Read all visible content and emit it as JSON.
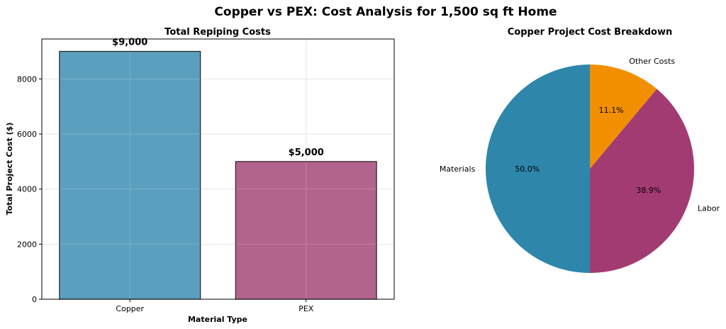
{
  "figure": {
    "title": "Copper vs PEX: Cost Analysis for 1,500 sq ft Home"
  },
  "chart_data": [
    {
      "type": "bar",
      "title": "Total Repiping Costs",
      "xlabel": "Material Type",
      "ylabel": "Total Project Cost ($)",
      "categories": [
        "Copper",
        "PEX"
      ],
      "values": [
        9000,
        5000
      ],
      "data_labels": [
        "$9,000",
        "$5,000"
      ],
      "colors": [
        "#5b9fbf",
        "#b3648c"
      ],
      "edge_color": "#222222",
      "ylim": [
        0,
        9450
      ],
      "yticks": [
        0,
        2000,
        4000,
        6000,
        8000
      ],
      "ytick_labels": [
        "0",
        "2000",
        "4000",
        "6000",
        "8000"
      ],
      "grid": true
    },
    {
      "type": "pie",
      "title": "Copper Project Cost Breakdown",
      "slices": [
        {
          "label": "Materials",
          "value": 50.0,
          "pct_label": "50.0%",
          "color": "#2e86ab"
        },
        {
          "label": "Labor",
          "value": 38.9,
          "pct_label": "38.9%",
          "color": "#a23b72"
        },
        {
          "label": "Other Costs",
          "value": 11.1,
          "pct_label": "11.1%",
          "color": "#f18f01"
        }
      ],
      "start_angle_deg": 90,
      "direction": "counterclockwise"
    }
  ]
}
